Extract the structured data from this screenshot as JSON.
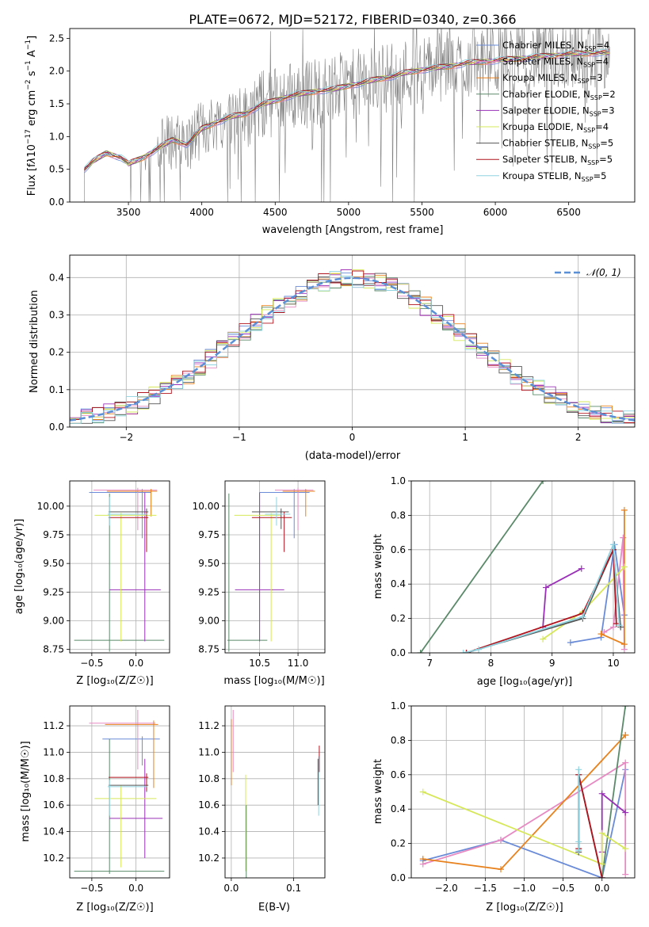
{
  "colors": {
    "chabrier_miles": "#6a8bd8",
    "salpeter_miles": "#e78ac3",
    "kroupa_miles": "#e8821e",
    "chabrier_elodie": "#5a8a6a",
    "salpeter_elodie": "#9a30b8",
    "kroupa_elodie": "#d6e85a",
    "chabrier_stelib": "#555555",
    "salpeter_stelib": "#b0141e",
    "kroupa_stelib": "#8fd3e0",
    "data_spectrum": "#808080",
    "normal_curve": "#5b8fd6",
    "grid": "#b0b0b0"
  },
  "chart_data": [
    {
      "id": "spectrum",
      "type": "line",
      "title": "PLATE=0672, MJD=52172, FIBERID=0340, z=0.366",
      "xlabel": "wavelength [Angstrom, rest frame]",
      "ylabel": "Flux [f_λ 10^-17 erg cm^-2 s^-1 A^-1]",
      "xlim": [
        3100,
        6950
      ],
      "ylim": [
        0,
        2.65
      ],
      "xticks": [
        "3500",
        "4000",
        "4500",
        "5000",
        "5500",
        "6000",
        "6500"
      ],
      "yticks": [
        "0.0",
        "0.5",
        "1.0",
        "1.5",
        "2.0",
        "2.5"
      ],
      "grid": false,
      "legend_position": "top-right",
      "legend": [
        {
          "label": "Chabrier MILES, N_SSP=4",
          "color": "chabrier_miles"
        },
        {
          "label": "Salpeter MILES, N_SSP=4",
          "color": "salpeter_miles"
        },
        {
          "label": "Kroupa MILES, N_SSP=3",
          "color": "kroupa_miles"
        },
        {
          "label": "Chabrier ELODIE, N_SSP=2",
          "color": "chabrier_elodie"
        },
        {
          "label": "Salpeter ELODIE, N_SSP=3",
          "color": "salpeter_elodie"
        },
        {
          "label": "Kroupa ELODIE, N_SSP=4",
          "color": "kroupa_elodie"
        },
        {
          "label": "Chabrier STELIB, N_SSP=5",
          "color": "chabrier_stelib"
        },
        {
          "label": "Salpeter STELIB, N_SSP=5",
          "color": "salpeter_stelib"
        },
        {
          "label": "Kroupa STELIB, N_SSP=5",
          "color": "kroupa_stelib"
        }
      ],
      "model_continuum": [
        [
          3200,
          0.5
        ],
        [
          3260,
          0.62
        ],
        [
          3350,
          0.75
        ],
        [
          3450,
          0.68
        ],
        [
          3500,
          0.58
        ],
        [
          3600,
          0.68
        ],
        [
          3700,
          0.82
        ],
        [
          3800,
          0.95
        ],
        [
          3900,
          0.88
        ],
        [
          4000,
          1.12
        ],
        [
          4100,
          1.22
        ],
        [
          4200,
          1.3
        ],
        [
          4300,
          1.35
        ],
        [
          4400,
          1.48
        ],
        [
          4500,
          1.55
        ],
        [
          4600,
          1.62
        ],
        [
          4700,
          1.66
        ],
        [
          4800,
          1.7
        ],
        [
          4900,
          1.72
        ],
        [
          5000,
          1.78
        ],
        [
          5100,
          1.82
        ],
        [
          5200,
          1.88
        ],
        [
          5300,
          1.92
        ],
        [
          5400,
          1.98
        ],
        [
          5500,
          2.02
        ],
        [
          5600,
          2.05
        ],
        [
          5700,
          2.08
        ],
        [
          5800,
          2.12
        ],
        [
          5900,
          2.14
        ],
        [
          6000,
          2.16
        ],
        [
          6100,
          2.18
        ],
        [
          6200,
          2.2
        ],
        [
          6300,
          2.22
        ],
        [
          6400,
          2.24
        ],
        [
          6500,
          2.26
        ],
        [
          6600,
          2.27
        ],
        [
          6700,
          2.28
        ],
        [
          6780,
          2.28
        ]
      ]
    },
    {
      "id": "residuals",
      "type": "step",
      "xlabel": "(data-model)/error",
      "ylabel": "Normed distribution",
      "xlim": [
        -2.5,
        2.5
      ],
      "ylim": [
        0,
        0.46
      ],
      "xticks": [
        "−2",
        "−1",
        "0",
        "1",
        "2"
      ],
      "yticks": [
        "0.0",
        "0.1",
        "0.2",
        "0.3",
        "0.4"
      ],
      "grid": true,
      "legend_position": "top-right",
      "normal_label": "𝒩(0, 1)",
      "bin_width": 0.1,
      "bin_start": -2.5
    },
    {
      "id": "age_vs_Z",
      "type": "errorbar",
      "xlabel": "Z [log₁₀(Z/Z☉)]",
      "ylabel": "age  [log₁₀(age/yr)]",
      "xlim": [
        -0.75,
        0.38
      ],
      "ylim": [
        8.72,
        10.22
      ],
      "xticks": [
        "−0.5",
        "0.0"
      ],
      "yticks": [
        "8.75",
        "9.00",
        "9.25",
        "9.50",
        "9.75",
        "10.00"
      ],
      "grid": true,
      "points": [
        {
          "c": "chabrier_miles",
          "x": 0.07,
          "xe": [
            0.6,
            0.1
          ],
          "y": 10.12,
          "ye": [
            0.4,
            0.03
          ]
        },
        {
          "c": "salpeter_miles",
          "x": 0.02,
          "xe": [
            0.5,
            0.22
          ],
          "y": 10.14,
          "ye": [
            0.35,
            0.02
          ]
        },
        {
          "c": "kroupa_miles",
          "x": 0.17,
          "xe": [
            0.5,
            0.07
          ],
          "y": 10.13,
          "ye": [
            0.22,
            0.02
          ]
        },
        {
          "c": "chabrier_elodie",
          "x": -0.3,
          "xe": [
            0.4,
            0.62
          ],
          "y": 8.83,
          "ye": [
            0.1,
            1.28
          ]
        },
        {
          "c": "salpeter_elodie",
          "x": 0.1,
          "xe": [
            0.4,
            0.18
          ],
          "y": 9.27,
          "ye": [
            0.45,
            0.85
          ]
        },
        {
          "c": "kroupa_elodie",
          "x": -0.17,
          "xe": [
            0.3,
            0.4
          ],
          "y": 9.92,
          "ye": [
            1.1,
            0.02
          ]
        },
        {
          "c": "chabrier_stelib",
          "x": 0.12,
          "xe": [
            0.43,
            0.02
          ],
          "y": 9.95,
          "ye": [
            0.15,
            0.03
          ]
        },
        {
          "c": "salpeter_stelib",
          "x": 0.12,
          "xe": [
            0.43,
            0.02
          ],
          "y": 9.9,
          "ye": [
            0.3,
            0.05
          ]
        },
        {
          "c": "kroupa_stelib",
          "x": -0.3,
          "xe": [
            0.02,
            0.43
          ],
          "y": 9.93,
          "ye": [
            0.1,
            0.15
          ]
        }
      ]
    },
    {
      "id": "age_vs_mass",
      "type": "errorbar",
      "xlabel": "mass [log₁₀(M/M☉)]",
      "ylabel": "",
      "xlim": [
        10.05,
        11.35
      ],
      "ylim": [
        8.72,
        10.22
      ],
      "xticks": [
        "10.5",
        "11.0"
      ],
      "yticks": [
        "8.75",
        "9.00",
        "9.25",
        "9.50",
        "9.75",
        "10.00"
      ],
      "grid": true,
      "points": [
        {
          "c": "chabrier_miles",
          "x": 10.95,
          "xe": [
            0.45,
            0.2
          ],
          "y": 10.12,
          "ye": [
            0.4,
            0.03
          ]
        },
        {
          "c": "salpeter_miles",
          "x": 11.0,
          "xe": [
            0.3,
            0.2
          ],
          "y": 10.14,
          "ye": [
            0.35,
            0.02
          ]
        },
        {
          "c": "kroupa_miles",
          "x": 11.1,
          "xe": [
            0.3,
            0.12
          ],
          "y": 10.13,
          "ye": [
            0.22,
            0.02
          ]
        },
        {
          "c": "chabrier_elodie",
          "x": 10.1,
          "xe": [
            0.02,
            0.5
          ],
          "y": 8.83,
          "ye": [
            0.1,
            1.28
          ]
        },
        {
          "c": "salpeter_elodie",
          "x": 10.5,
          "xe": [
            0.32,
            0.32
          ],
          "y": 9.27,
          "ye": [
            0.45,
            0.85
          ]
        },
        {
          "c": "kroupa_elodie",
          "x": 10.65,
          "xe": [
            0.48,
            0.12
          ],
          "y": 9.92,
          "ye": [
            1.1,
            0.02
          ]
        },
        {
          "c": "chabrier_stelib",
          "x": 10.78,
          "xe": [
            0.38,
            0.1
          ],
          "y": 9.95,
          "ye": [
            0.15,
            0.03
          ]
        },
        {
          "c": "salpeter_stelib",
          "x": 10.82,
          "xe": [
            0.42,
            0.1
          ],
          "y": 9.9,
          "ye": [
            0.3,
            0.05
          ]
        },
        {
          "c": "kroupa_stelib",
          "x": 10.72,
          "xe": [
            0.15,
            0.18
          ],
          "y": 9.93,
          "ye": [
            0.1,
            0.15
          ]
        }
      ]
    },
    {
      "id": "weight_vs_age",
      "type": "line",
      "xlabel": "age  [log₁₀(age/yr)]",
      "ylabel": "mass weight",
      "xlim": [
        6.7,
        10.35
      ],
      "ylim": [
        0,
        1.0
      ],
      "xticks": [
        "7",
        "8",
        "9",
        "10"
      ],
      "yticks": [
        "0.0",
        "0.2",
        "0.4",
        "0.6",
        "0.8",
        "1.0"
      ],
      "grid": true,
      "series": [
        {
          "c": "chabrier_miles",
          "x": [
            9.3,
            9.8,
            10.02,
            10.18
          ],
          "y": [
            0.06,
            0.09,
            0.63,
            0.22
          ]
        },
        {
          "c": "salpeter_miles",
          "x": [
            9.85,
            10.0,
            10.16,
            10.18
          ],
          "y": [
            0.12,
            0.15,
            0.67,
            0.02
          ]
        },
        {
          "c": "kroupa_miles",
          "x": [
            9.8,
            10.18,
            10.18
          ],
          "y": [
            0.11,
            0.05,
            0.83
          ]
        },
        {
          "c": "chabrier_elodie",
          "x": [
            6.85,
            8.85
          ],
          "y": [
            0.0,
            1.0
          ]
        },
        {
          "c": "salpeter_elodie",
          "x": [
            8.85,
            8.9,
            9.48
          ],
          "y": [
            0.15,
            0.38,
            0.49
          ]
        },
        {
          "c": "kroupa_elodie",
          "x": [
            8.85,
            9.5,
            10.18
          ],
          "y": [
            0.08,
            0.24,
            0.5
          ]
        },
        {
          "c": "chabrier_stelib",
          "x": [
            7.6,
            9.5,
            10.0,
            10.12
          ],
          "y": [
            0.0,
            0.2,
            0.6,
            0.15
          ]
        },
        {
          "c": "salpeter_stelib",
          "x": [
            7.6,
            9.5,
            10.0,
            10.05
          ],
          "y": [
            0.0,
            0.23,
            0.6,
            0.17
          ]
        },
        {
          "c": "kroupa_stelib",
          "x": [
            7.55,
            7.8,
            9.5,
            10.0,
            10.1
          ],
          "y": [
            0.0,
            0.02,
            0.21,
            0.63,
            0.16
          ]
        }
      ]
    },
    {
      "id": "mass_vs_Z",
      "type": "errorbar",
      "xlabel": "Z [log₁₀(Z/Z☉)]",
      "ylabel": "mass [log₁₀(M/M☉)]",
      "xlim": [
        -0.75,
        0.38
      ],
      "ylim": [
        10.05,
        11.35
      ],
      "xticks": [
        "−0.5",
        "0.0"
      ],
      "yticks": [
        "10.2",
        "10.4",
        "10.6",
        "10.8",
        "11.0",
        "11.2"
      ],
      "grid": true,
      "points": [
        {
          "c": "chabrier_miles",
          "x": 0.07,
          "xe": [
            0.45,
            0.2
          ],
          "y": 11.1,
          "ye": [
            0.2,
            0.02
          ]
        },
        {
          "c": "salpeter_miles",
          "x": 0.02,
          "xe": [
            0.55,
            0.2
          ],
          "y": 11.22,
          "ye": [
            0.35,
            0.1
          ]
        },
        {
          "c": "kroupa_miles",
          "x": 0.2,
          "xe": [
            0.55,
            0.05
          ],
          "y": 11.21,
          "ye": [
            0.48,
            0.03
          ]
        },
        {
          "c": "chabrier_elodie",
          "x": -0.3,
          "xe": [
            0.4,
            0.62
          ],
          "y": 10.1,
          "ye": [
            0.02,
            1.0
          ]
        },
        {
          "c": "salpeter_elodie",
          "x": 0.1,
          "xe": [
            0.4,
            0.2
          ],
          "y": 10.5,
          "ye": [
            0.3,
            0.45
          ]
        },
        {
          "c": "kroupa_elodie",
          "x": -0.17,
          "xe": [
            0.3,
            0.4
          ],
          "y": 10.65,
          "ye": [
            0.52,
            0.1
          ]
        },
        {
          "c": "chabrier_stelib",
          "x": 0.12,
          "xe": [
            0.43,
            0.02
          ],
          "y": 10.75,
          "ye": [
            0.05,
            0.03
          ]
        },
        {
          "c": "salpeter_stelib",
          "x": 0.12,
          "xe": [
            0.43,
            0.02
          ],
          "y": 10.81,
          "ye": [
            0.1,
            0.03
          ]
        },
        {
          "c": "kroupa_stelib",
          "x": -0.3,
          "xe": [
            0.02,
            0.43
          ],
          "y": 10.74,
          "ye": [
            0.22,
            0.05
          ]
        }
      ]
    },
    {
      "id": "mass_vs_ebv",
      "type": "errorbar",
      "xlabel": "E(B-V)",
      "ylabel": "",
      "xlim": [
        -0.01,
        0.15
      ],
      "ylim": [
        10.05,
        11.35
      ],
      "xticks": [
        "0.0",
        "0.1"
      ],
      "yticks": [
        "10.2",
        "10.4",
        "10.6",
        "10.8",
        "11.0",
        "11.2"
      ],
      "grid": true,
      "points": [
        {
          "c": "salpeter_miles",
          "x": 0.003,
          "xe": [
            0.0,
            0.0
          ],
          "y": 11.1,
          "ye": [
            0.25,
            0.22
          ]
        },
        {
          "c": "kroupa_miles",
          "x": 0.0,
          "xe": [
            0.0,
            0.0
          ],
          "y": 11.0,
          "ye": [
            0.25,
            0.25
          ]
        },
        {
          "c": "kroupa_elodie",
          "x": 0.023,
          "xe": [
            0.0,
            0.0
          ],
          "y": 10.45,
          "ye": [
            0.35,
            0.38
          ]
        },
        {
          "c": "chabrier_elodie",
          "x": 0.024,
          "xe": [
            0.0,
            0.0
          ],
          "y": 10.3,
          "ye": [
            0.25,
            0.3
          ]
        },
        {
          "c": "salpeter_stelib",
          "x": 0.141,
          "xe": [
            0.0,
            0.0
          ],
          "y": 10.95,
          "ye": [
            0.1,
            0.1
          ]
        },
        {
          "c": "kroupa_stelib",
          "x": 0.14,
          "xe": [
            0.0,
            0.0
          ],
          "y": 10.72,
          "ye": [
            0.2,
            0.25
          ]
        },
        {
          "c": "chabrier_stelib",
          "x": 0.139,
          "xe": [
            0.0,
            0.0
          ],
          "y": 10.75,
          "ye": [
            0.15,
            0.2
          ]
        }
      ]
    },
    {
      "id": "weight_vs_Z",
      "type": "line",
      "xlabel": "Z [log₁₀(Z/Z☉)]",
      "ylabel": "mass weight",
      "xlim": [
        -2.45,
        0.42
      ],
      "ylim": [
        0,
        1.0
      ],
      "xticks": [
        "−2.0",
        "−1.5",
        "−1.0",
        "−0.5",
        "0.0"
      ],
      "yticks": [
        "0.0",
        "0.2",
        "0.4",
        "0.6",
        "0.8",
        "1.0"
      ],
      "grid": true,
      "series": [
        {
          "c": "chabrier_miles",
          "x": [
            -2.3,
            -1.3,
            0.0,
            0.3
          ],
          "y": [
            0.1,
            0.22,
            0.0,
            0.63
          ]
        },
        {
          "c": "salpeter_miles",
          "x": [
            -2.3,
            -1.3,
            0.3,
            0.3
          ],
          "y": [
            0.08,
            0.22,
            0.67,
            0.02
          ]
        },
        {
          "c": "kroupa_miles",
          "x": [
            -2.3,
            -1.3,
            0.3,
            0.3
          ],
          "y": [
            0.11,
            0.05,
            0.83,
            0.83
          ]
        },
        {
          "c": "chabrier_elodie",
          "x": [
            0.0,
            0.3
          ],
          "y": [
            0.0,
            1.0
          ]
        },
        {
          "c": "salpeter_elodie",
          "x": [
            0.0,
            0.0,
            0.3
          ],
          "y": [
            0.15,
            0.49,
            0.38
          ]
        },
        {
          "c": "kroupa_elodie",
          "x": [
            -2.3,
            0.0,
            0.0,
            0.3
          ],
          "y": [
            0.5,
            0.08,
            0.26,
            0.17
          ]
        },
        {
          "c": "chabrier_stelib",
          "x": [
            -0.3,
            -0.3,
            0.0
          ],
          "y": [
            0.15,
            0.6,
            0.0
          ]
        },
        {
          "c": "salpeter_stelib",
          "x": [
            -0.3,
            -0.3,
            0.0
          ],
          "y": [
            0.17,
            0.6,
            0.0
          ]
        },
        {
          "c": "kroupa_stelib",
          "x": [
            -0.3,
            -0.3,
            -0.3
          ],
          "y": [
            0.16,
            0.63,
            0.21
          ]
        }
      ]
    }
  ]
}
